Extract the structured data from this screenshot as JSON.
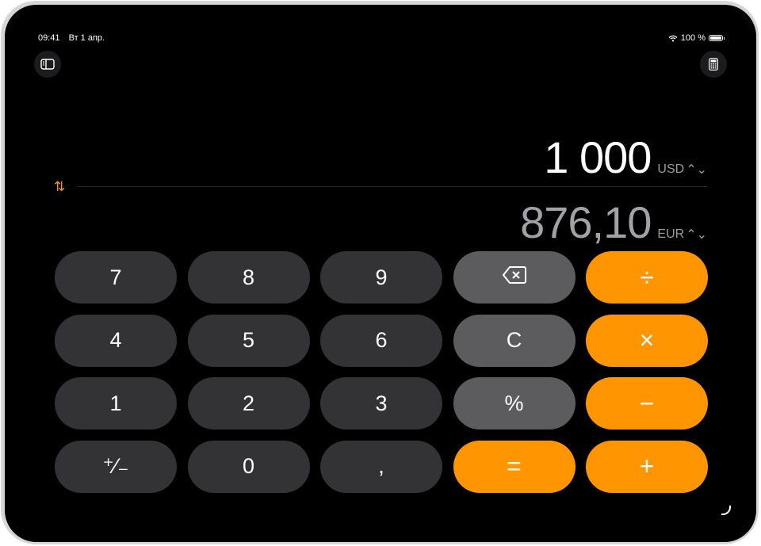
{
  "status_bar": {
    "time": "09:41",
    "date": "Вт 1 апр.",
    "battery": "100 %"
  },
  "toolbar": {
    "sidebar_icon": "sidebar-icon",
    "mode_icon": "calculator-icon"
  },
  "converter": {
    "from": {
      "value": "1 000",
      "currency": "USD"
    },
    "to": {
      "value": "876,10",
      "currency": "EUR"
    },
    "swap_icon": "arrow-up-down-icon"
  },
  "colors": {
    "accent": "#ff9500",
    "digit_key": "#333335",
    "function_key": "#5c5c5e"
  },
  "keys": [
    {
      "label": "7",
      "kind": "num",
      "name": "key-7"
    },
    {
      "label": "8",
      "kind": "num",
      "name": "key-8"
    },
    {
      "label": "9",
      "kind": "num",
      "name": "key-9"
    },
    {
      "label": "",
      "kind": "fn",
      "name": "backspace-button",
      "icon": "backspace-icon"
    },
    {
      "label": "÷",
      "kind": "op",
      "name": "divide-button"
    },
    {
      "label": "4",
      "kind": "num",
      "name": "key-4"
    },
    {
      "label": "5",
      "kind": "num",
      "name": "key-5"
    },
    {
      "label": "6",
      "kind": "num",
      "name": "key-6"
    },
    {
      "label": "C",
      "kind": "fn",
      "name": "clear-button"
    },
    {
      "label": "×",
      "kind": "op",
      "name": "multiply-button"
    },
    {
      "label": "1",
      "kind": "num",
      "name": "key-1"
    },
    {
      "label": "2",
      "kind": "num",
      "name": "key-2"
    },
    {
      "label": "3",
      "kind": "num",
      "name": "key-3"
    },
    {
      "label": "%",
      "kind": "fn",
      "name": "percent-button"
    },
    {
      "label": "−",
      "kind": "op",
      "name": "subtract-button"
    },
    {
      "label": "⁺∕₋",
      "kind": "num",
      "name": "sign-toggle-button"
    },
    {
      "label": "0",
      "kind": "num",
      "name": "key-0"
    },
    {
      "label": ",",
      "kind": "num",
      "name": "decimal-button"
    },
    {
      "label": "=",
      "kind": "op",
      "name": "equals-button"
    },
    {
      "label": "+",
      "kind": "op",
      "name": "add-button"
    }
  ]
}
